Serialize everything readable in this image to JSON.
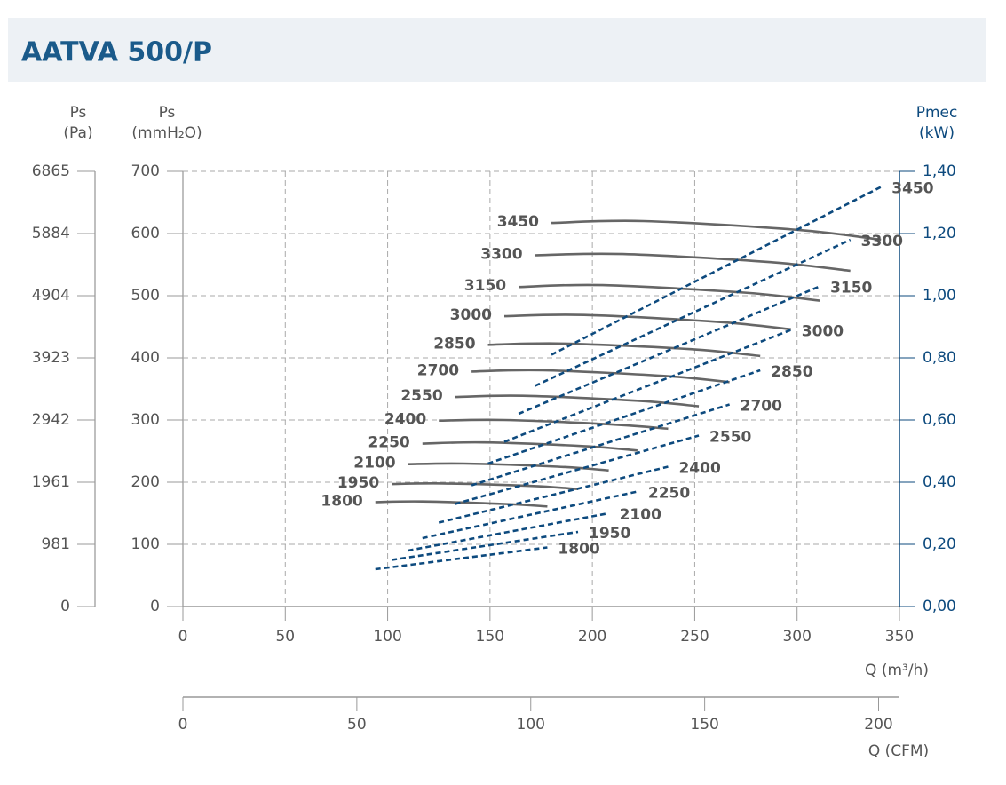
{
  "chart_data": {
    "type": "line",
    "title": "AATVA 500/P",
    "y_label": "Ps",
    "y_unit": "(mmH₂O)",
    "y3_label": "Ps",
    "y3_unit": "(Pa)",
    "y2_label": "Pmec",
    "y2_unit": "(kW)",
    "x_label": "Q (m³/h)",
    "x2_label": "Q (CFM)",
    "xlim": [
      0,
      350
    ],
    "xticks": [
      0,
      50,
      100,
      150,
      200,
      250,
      300,
      350
    ],
    "x2lim": [
      0,
      206
    ],
    "x2ticks": [
      0,
      50,
      100,
      150,
      200
    ],
    "ylim": [
      0,
      700
    ],
    "yticks": [
      0,
      100,
      200,
      300,
      400,
      500,
      600,
      700
    ],
    "y3lim": [
      0,
      6865
    ],
    "y3ticks": [
      0,
      981,
      1961,
      2942,
      3923,
      4904,
      5884,
      6865
    ],
    "y2lim": [
      0,
      1.4
    ],
    "y2ticks": [
      {
        "value": 0,
        "label": "0,00"
      },
      {
        "value": 0.2,
        "label": "0,20"
      },
      {
        "value": 0.4,
        "label": "0,40"
      },
      {
        "value": 0.6,
        "label": "0,60"
      },
      {
        "value": 0.8,
        "label": "0,80"
      },
      {
        "value": 1.0,
        "label": "1,00"
      },
      {
        "value": 1.2,
        "label": "1,20"
      },
      {
        "value": 1.4,
        "label": "1,40"
      }
    ],
    "grid": true,
    "series": [
      {
        "name": "3450",
        "color": "#666666",
        "x": [
          180,
          225,
          300,
          341
        ],
        "values": [
          617,
          620,
          606,
          590
        ]
      },
      {
        "name": "3300",
        "color": "#666666",
        "x": [
          172,
          215,
          287,
          326
        ],
        "values": [
          565,
          567,
          554,
          540
        ]
      },
      {
        "name": "3150",
        "color": "#666666",
        "x": [
          164,
          205,
          274,
          311
        ],
        "values": [
          514,
          517,
          505,
          492
        ]
      },
      {
        "name": "3000",
        "color": "#666666",
        "x": [
          157,
          196,
          261,
          297
        ],
        "values": [
          467,
          469,
          458,
          446
        ]
      },
      {
        "name": "2850",
        "color": "#666666",
        "x": [
          149,
          186,
          248,
          282
        ],
        "values": [
          421,
          423,
          414,
          403
        ]
      },
      {
        "name": "2700",
        "color": "#666666",
        "x": [
          141,
          176,
          235,
          267
        ],
        "values": [
          378,
          380,
          371,
          361
        ]
      },
      {
        "name": "2550",
        "color": "#666666",
        "x": [
          133,
          166,
          222,
          252
        ],
        "values": [
          337,
          339,
          331,
          322
        ]
      },
      {
        "name": "2400",
        "color": "#666666",
        "x": [
          125,
          157,
          209,
          237
        ],
        "values": [
          299,
          300,
          293,
          286
        ]
      },
      {
        "name": "2250",
        "color": "#666666",
        "x": [
          117,
          147,
          196,
          222
        ],
        "values": [
          262,
          264,
          258,
          251
        ]
      },
      {
        "name": "2100",
        "color": "#666666",
        "x": [
          110,
          137,
          183,
          208
        ],
        "values": [
          229,
          230,
          225,
          219
        ]
      },
      {
        "name": "1950",
        "color": "#666666",
        "x": [
          102,
          127,
          170,
          193
        ],
        "values": [
          197,
          198,
          194,
          189
        ]
      },
      {
        "name": "1800",
        "color": "#666666",
        "x": [
          94,
          117,
          157,
          178
        ],
        "values": [
          168,
          169,
          165,
          161
        ]
      },
      {
        "name": "3450",
        "color": "#0d4a7e",
        "axis": "y2",
        "dashed": true,
        "x": [
          180,
          341
        ],
        "values": [
          0.81,
          1.35
        ]
      },
      {
        "name": "3300",
        "color": "#0d4a7e",
        "axis": "y2",
        "dashed": true,
        "x": [
          172,
          326
        ],
        "values": [
          0.71,
          1.18
        ]
      },
      {
        "name": "3150",
        "color": "#0d4a7e",
        "axis": "y2",
        "dashed": true,
        "x": [
          164,
          311
        ],
        "values": [
          0.62,
          1.03
        ]
      },
      {
        "name": "3000",
        "color": "#0d4a7e",
        "axis": "y2",
        "dashed": true,
        "x": [
          157,
          297
        ],
        "values": [
          0.53,
          0.89
        ]
      },
      {
        "name": "2850",
        "color": "#0d4a7e",
        "axis": "y2",
        "dashed": true,
        "x": [
          149,
          282
        ],
        "values": [
          0.46,
          0.76
        ]
      },
      {
        "name": "2700",
        "color": "#0d4a7e",
        "axis": "y2",
        "dashed": true,
        "x": [
          141,
          267
        ],
        "values": [
          0.39,
          0.65
        ]
      },
      {
        "name": "2550",
        "color": "#0d4a7e",
        "axis": "y2",
        "dashed": true,
        "x": [
          133,
          252
        ],
        "values": [
          0.33,
          0.55
        ]
      },
      {
        "name": "2400",
        "color": "#0d4a7e",
        "axis": "y2",
        "dashed": true,
        "x": [
          125,
          237
        ],
        "values": [
          0.27,
          0.45
        ]
      },
      {
        "name": "2250",
        "color": "#0d4a7e",
        "axis": "y2",
        "dashed": true,
        "x": [
          117,
          222
        ],
        "values": [
          0.22,
          0.37
        ]
      },
      {
        "name": "2100",
        "color": "#0d4a7e",
        "axis": "y2",
        "dashed": true,
        "x": [
          110,
          208
        ],
        "values": [
          0.18,
          0.3
        ]
      },
      {
        "name": "1950",
        "color": "#0d4a7e",
        "axis": "y2",
        "dashed": true,
        "x": [
          102,
          193
        ],
        "values": [
          0.15,
          0.24
        ]
      },
      {
        "name": "1800",
        "color": "#0d4a7e",
        "axis": "y2",
        "dashed": true,
        "x": [
          94,
          178
        ],
        "values": [
          0.12,
          0.19
        ]
      }
    ]
  }
}
